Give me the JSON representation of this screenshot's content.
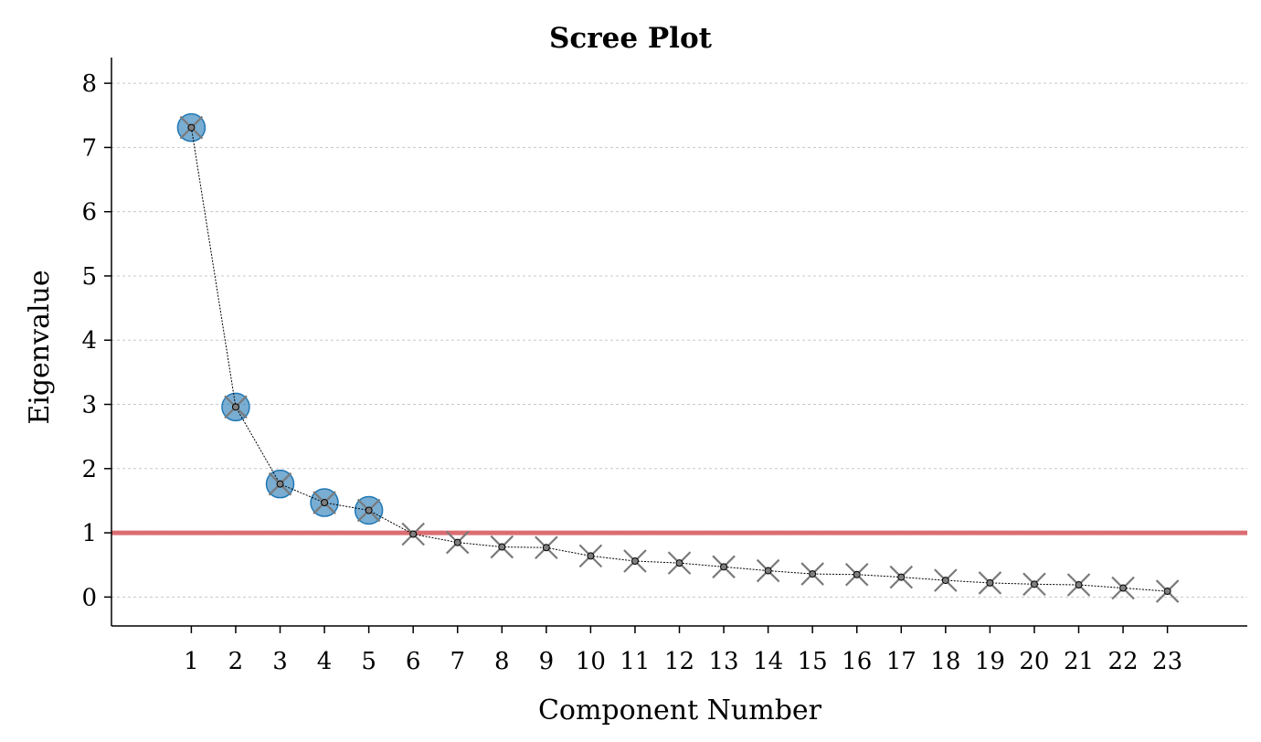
{
  "chart_data": {
    "type": "line",
    "title": "Scree Plot",
    "xlabel": "Component Number",
    "ylabel": "Eigenvalue",
    "x": [
      1,
      2,
      3,
      4,
      5,
      6,
      7,
      8,
      9,
      10,
      11,
      12,
      13,
      14,
      15,
      16,
      17,
      18,
      19,
      20,
      21,
      22,
      23
    ],
    "values": [
      7.31,
      2.96,
      1.76,
      1.47,
      1.35,
      0.98,
      0.85,
      0.78,
      0.77,
      0.64,
      0.56,
      0.53,
      0.47,
      0.41,
      0.36,
      0.35,
      0.31,
      0.26,
      0.22,
      0.2,
      0.19,
      0.14,
      0.09
    ],
    "xticks": [
      "1",
      "2",
      "3",
      "4",
      "5",
      "6",
      "7",
      "8",
      "9",
      "10",
      "11",
      "12",
      "13",
      "14",
      "15",
      "16",
      "17",
      "18",
      "19",
      "20",
      "21",
      "22",
      "23"
    ],
    "yticks": [
      "0",
      "1",
      "2",
      "3",
      "4",
      "5",
      "6",
      "7",
      "8"
    ],
    "xlim": [
      -0.8,
      24.8
    ],
    "ylim": [
      -0.45,
      8.4
    ],
    "threshold": 1,
    "retained_components": 5,
    "grid": "horizontal",
    "colors": {
      "retained": "#1f77b4",
      "threshold": "#d9666b",
      "marker": "#7a7a7a",
      "point": "#7f7f7f"
    }
  }
}
